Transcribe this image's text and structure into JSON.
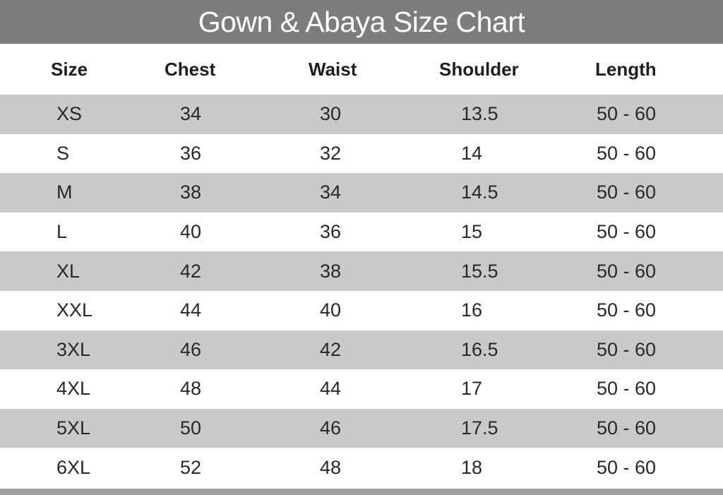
{
  "title": "Gown & Abaya Size Chart",
  "colors": {
    "title_bar_bg": "#7b7d80",
    "title_text": "#ffffff",
    "stripe_row_bg": "#c9c9cb",
    "white_row_bg": "#ffffff",
    "bottom_bar_bg": "#9ea1a4",
    "header_text": "#1d1e22",
    "data_text": "#27282c"
  },
  "chart_data": {
    "type": "table",
    "title": "Gown & Abaya Size Chart",
    "columns": [
      "Size",
      "Chest",
      "Waist",
      "Shoulder",
      "Length"
    ],
    "rows": [
      [
        "XS",
        "34",
        "30",
        "13.5",
        "50 - 60"
      ],
      [
        "S",
        "36",
        "32",
        "14",
        "50 - 60"
      ],
      [
        "M",
        "38",
        "34",
        "14.5",
        "50 - 60"
      ],
      [
        "L",
        "40",
        "36",
        "15",
        "50 - 60"
      ],
      [
        "XL",
        "42",
        "38",
        "15.5",
        "50 - 60"
      ],
      [
        "XXL",
        "44",
        "40",
        "16",
        "50 - 60"
      ],
      [
        "3XL",
        "46",
        "42",
        "16.5",
        "50 - 60"
      ],
      [
        "4XL",
        "48",
        "44",
        "17",
        "50 - 60"
      ],
      [
        "5XL",
        "50",
        "46",
        "17.5",
        "50 - 60"
      ],
      [
        "6XL",
        "52",
        "48",
        "18",
        "50 - 60"
      ]
    ],
    "layout": {
      "striped_rows": "alternating, first data row shaded",
      "data_alignment": "left",
      "header_alignment": "centered-over-columns"
    }
  }
}
